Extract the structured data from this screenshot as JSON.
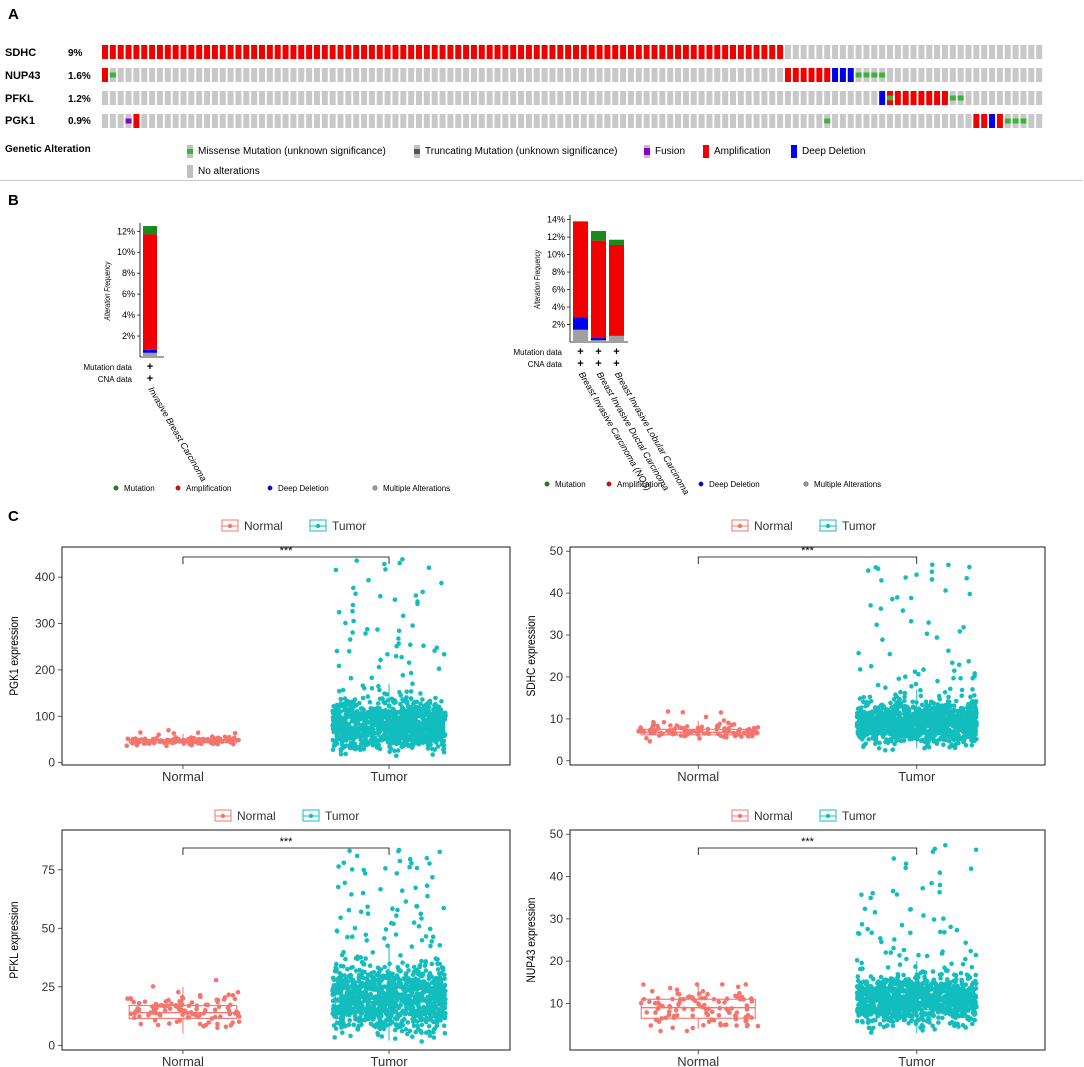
{
  "panel_labels": {
    "a": "A",
    "b": "B",
    "c": "C"
  },
  "oncoprint": {
    "genes": [
      {
        "name": "SDHC",
        "percent": "9%"
      },
      {
        "name": "NUP43",
        "percent": "1.6%"
      },
      {
        "name": "PFKL",
        "percent": "1.2%"
      },
      {
        "name": "PGK1",
        "percent": "0.9%"
      }
    ],
    "legend_title": "Genetic Alteration",
    "legend": [
      {
        "label": "Missense Mutation (unknown significance)",
        "color": "#39b539"
      },
      {
        "label": "Truncating Mutation (unknown significance)",
        "color": "#808080"
      },
      {
        "label": "Fusion",
        "color": "#8b00c9"
      },
      {
        "label": "Amplification",
        "color": "#ff0000"
      },
      {
        "label": "Deep Deletion",
        "color": "#0000ff"
      },
      {
        "label": "No alterations",
        "color": "#c0c0c0"
      }
    ],
    "colors": {
      "none": "#c8c8c8",
      "amp": "#f20000",
      "del": "#0000ee",
      "mis": "#39b539",
      "fus": "#8b00c9"
    }
  },
  "chart_data": [
    {
      "type": "bar",
      "title": "",
      "ylabel": "Alteration Frequency",
      "yticks": [
        "2%",
        "4%",
        "6%",
        "8%",
        "10%",
        "12%"
      ],
      "ylim": [
        0,
        12.6
      ],
      "categories": [
        "Invasive Breast Carcinoma"
      ],
      "series": [
        {
          "name": "Multiple Alterations",
          "color": "#a0a0a0",
          "values": [
            0.4
          ]
        },
        {
          "name": "Deep Deletion",
          "color": "#0000ee",
          "values": [
            0.3
          ]
        },
        {
          "name": "Amplification",
          "color": "#f20000",
          "values": [
            11.0
          ]
        },
        {
          "name": "Mutation",
          "color": "#1a8a1a",
          "values": [
            0.8
          ]
        }
      ],
      "row_labels": [
        "Mutation data",
        "CNA data"
      ],
      "row_marks": [
        "+",
        "+"
      ],
      "legend": [
        "Mutation",
        "Amplification",
        "Deep Deletion",
        "Multiple Alterations"
      ]
    },
    {
      "type": "bar",
      "title": "",
      "ylabel": "Alteration Frequency",
      "yticks": [
        "2%",
        "4%",
        "6%",
        "8%",
        "10%",
        "12%",
        "14%"
      ],
      "ylim": [
        0,
        14.3
      ],
      "categories": [
        "Breast Invasive Carcinoma (NOS)",
        "Breast Invasive Ductal Carcinoma",
        "Breast Invasive Lobular Carcinoma"
      ],
      "series": [
        {
          "name": "Multiple Alterations",
          "color": "#a0a0a0",
          "values": [
            1.4,
            0.2,
            0.7
          ]
        },
        {
          "name": "Deep Deletion",
          "color": "#0000ee",
          "values": [
            1.4,
            0.3,
            0.0
          ]
        },
        {
          "name": "Amplification",
          "color": "#f20000",
          "values": [
            11.0,
            11.1,
            10.4
          ]
        },
        {
          "name": "Mutation",
          "color": "#1a8a1a",
          "values": [
            0.0,
            1.1,
            0.6
          ]
        }
      ],
      "row_labels": [
        "Mutation data",
        "CNA data"
      ],
      "row_marks": [
        "+",
        "+"
      ],
      "legend": [
        "Mutation",
        "Amplification",
        "Deep Deletion",
        "Multiple Alterations"
      ]
    },
    {
      "type": "scatter",
      "title": "",
      "ylabel": "PGK1 expression",
      "xlabel": "",
      "categories": [
        "Normal",
        "Tumor"
      ],
      "ylim": [
        -5,
        465
      ],
      "yticks": [
        0,
        100,
        200,
        300,
        400
      ],
      "legend": [
        "Normal",
        "Tumor"
      ],
      "significance": "***",
      "boxes": [
        {
          "group": "Normal",
          "min": 35,
          "q1": 43,
          "median": 47,
          "q3": 50,
          "max": 62
        },
        {
          "group": "Tumor",
          "min": 20,
          "q1": 57,
          "median": 72,
          "q3": 100,
          "max": 170
        }
      ],
      "point_range": [
        [
          32,
          75
        ],
        [
          15,
          440
        ]
      ]
    },
    {
      "type": "scatter",
      "title": "",
      "ylabel": "SDHC expression",
      "xlabel": "",
      "categories": [
        "Normal",
        "Tumor"
      ],
      "ylim": [
        -1,
        51
      ],
      "yticks": [
        0,
        10,
        20,
        30,
        40,
        50
      ],
      "legend": [
        "Normal",
        "Tumor"
      ],
      "significance": "***",
      "boxes": [
        {
          "group": "Normal",
          "min": 5,
          "q1": 6.2,
          "median": 6.8,
          "q3": 7.5,
          "max": 9.5
        },
        {
          "group": "Tumor",
          "min": 3,
          "q1": 7,
          "median": 8.5,
          "q3": 11,
          "max": 17
        }
      ],
      "point_range": [
        [
          4.5,
          13
        ],
        [
          2.5,
          47
        ]
      ]
    },
    {
      "type": "scatter",
      "title": "",
      "ylabel": "PFKL expression",
      "xlabel": "",
      "categories": [
        "Normal",
        "Tumor"
      ],
      "ylim": [
        -2,
        92
      ],
      "yticks": [
        0,
        25,
        50,
        75
      ],
      "legend": [
        "Normal",
        "Tumor"
      ],
      "significance": "***",
      "boxes": [
        {
          "group": "Normal",
          "min": 5,
          "q1": 11.5,
          "median": 14,
          "q3": 17,
          "max": 25
        },
        {
          "group": "Tumor",
          "min": 2,
          "q1": 14,
          "median": 18.5,
          "q3": 25,
          "max": 42
        }
      ],
      "point_range": [
        [
          3,
          31
        ],
        [
          1,
          84
        ]
      ]
    },
    {
      "type": "scatter",
      "title": "",
      "ylabel": "NUP43 expression",
      "xlabel": "",
      "categories": [
        "Normal",
        "Tumor"
      ],
      "ylim": [
        -1,
        51
      ],
      "yticks": [
        10,
        20,
        30,
        40,
        50
      ],
      "legend": [
        "Normal",
        "Tumor"
      ],
      "significance": "***",
      "boxes": [
        {
          "group": "Normal",
          "min": 4,
          "q1": 6.5,
          "median": 9,
          "q3": 11,
          "max": 14.5
        },
        {
          "group": "Tumor",
          "min": 3,
          "q1": 8.5,
          "median": 10.5,
          "q3": 13,
          "max": 20
        }
      ],
      "point_range": [
        [
          3.5,
          14.5
        ],
        [
          3,
          48
        ]
      ]
    }
  ]
}
